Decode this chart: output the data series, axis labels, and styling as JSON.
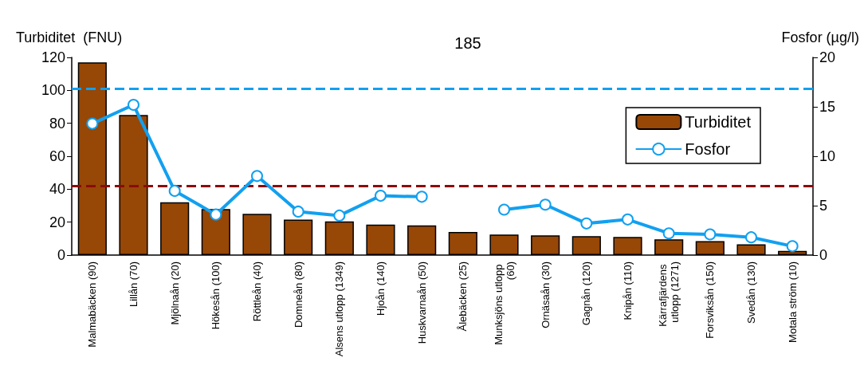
{
  "chart_data": {
    "type": "bar",
    "ylabel": "Turbiditet  (FNU)",
    "y2label": "Fosfor (µg/l)",
    "categories": [
      "Malmabäcken (90)",
      "Lillån (70)",
      "Mjölnaån (20)",
      "Hökesån (100)",
      "Röttleån (40)",
      "Domneån (80)",
      "Alsens utlopp (1349)",
      "Hjoån (140)",
      "Huskvarnaån (50)",
      "Ålebäcken (25)",
      "Munksjöns utlopp (60)",
      "Ornäsaån (30)",
      "Gagnån (120)",
      "Knipån (110)",
      "Kärrafjärdens utlopp (1271)",
      "Forsviksån (150)",
      "Svedån (130)",
      "Motala ström (10)"
    ],
    "series": [
      {
        "name": "Turbiditet",
        "color": "#974706",
        "values": [
          117,
          85,
          32,
          28,
          25,
          21.5,
          20.5,
          18.5,
          18,
          14,
          12.5,
          12,
          11.5,
          11,
          9.5,
          8.5,
          6.5,
          2.5
        ]
      },
      {
        "name": "Fosfor",
        "type": "line",
        "axis": "y2",
        "color": "#12a0f0",
        "marker": "circle",
        "values": [
          13.3,
          15.2,
          6.5,
          4.1,
          8.0,
          4.4,
          4.0,
          6.0,
          5.9,
          null,
          4.6,
          5.1,
          3.2,
          3.6,
          2.2,
          2.1,
          1.8,
          0.9
        ]
      }
    ],
    "ylim": [
      0,
      120
    ],
    "yticks": [
      0,
      20,
      40,
      60,
      80,
      100,
      120
    ],
    "y2lim": [
      0,
      20
    ],
    "y2ticks": [
      0,
      5,
      10,
      15,
      20
    ],
    "ref_lines": [
      {
        "axis": "y",
        "value": 42,
        "color": "#8b0a0a",
        "line_style": "dashed"
      },
      {
        "axis": "y2",
        "value": 16.8,
        "color": "#12a0f0",
        "line_style": "dashed"
      }
    ],
    "annotations": [
      "185"
    ],
    "legend": "top right",
    "grid": false
  }
}
